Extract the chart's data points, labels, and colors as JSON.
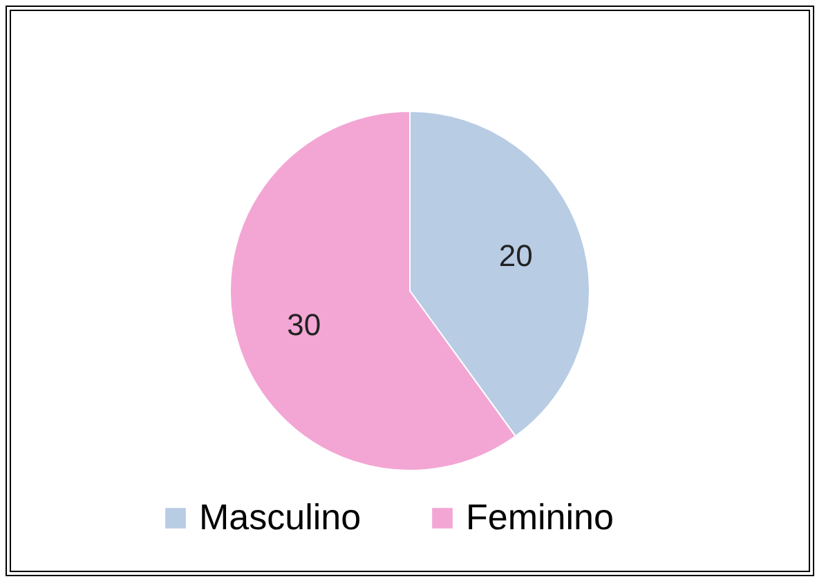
{
  "chart_data": {
    "type": "pie",
    "categories": [
      "Masculino",
      "Feminino"
    ],
    "values": [
      20,
      30
    ],
    "colors": [
      "#b8cce4",
      "#f3a6d4"
    ],
    "data_labels": true,
    "legend": "bottom"
  }
}
